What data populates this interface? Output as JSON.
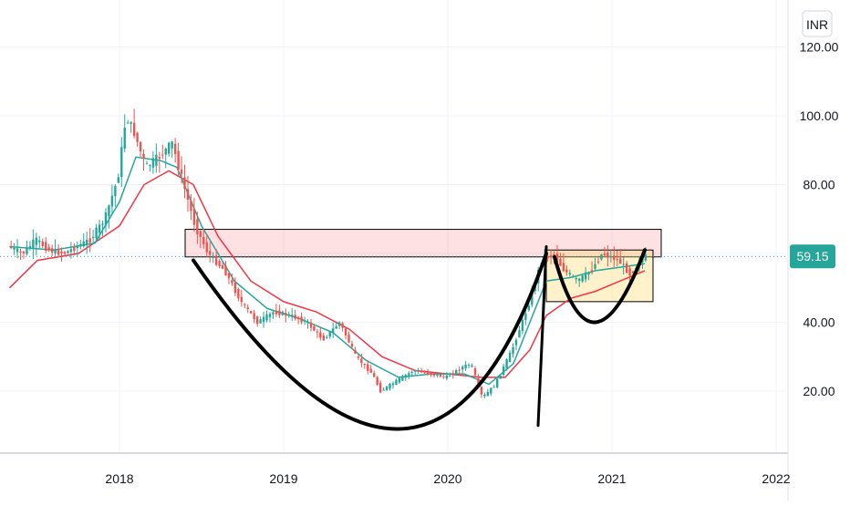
{
  "currency": "INR",
  "chart_data": {
    "type": "line",
    "title": "",
    "xlabel": "",
    "ylabel": "",
    "ylim": [
      0,
      130
    ],
    "y_ticks": [
      "120.00",
      "100.00",
      "80.00",
      "40.00",
      "20.00"
    ],
    "y_tick_values": [
      120,
      100,
      80,
      40,
      20
    ],
    "x_ticks": [
      "2018",
      "2019",
      "2020",
      "2021",
      "2022"
    ],
    "x_tick_values": [
      2018.0,
      2019.0,
      2020.0,
      2021.0,
      2022.0
    ],
    "grid": true,
    "last_price": 59.15,
    "last_price_label": "59.15",
    "colors": {
      "up": "#26a69a",
      "down": "#ef5350",
      "ema_fast": "#26a69a",
      "ema_slow": "#f23645",
      "price_line": "#26a69a"
    },
    "price": [
      [
        2017.33,
        62
      ],
      [
        2017.42,
        60
      ],
      [
        2017.5,
        64
      ],
      [
        2017.58,
        61
      ],
      [
        2017.67,
        60
      ],
      [
        2017.75,
        62
      ],
      [
        2017.83,
        64
      ],
      [
        2017.92,
        70
      ],
      [
        2018.0,
        82
      ],
      [
        2018.05,
        100
      ],
      [
        2018.1,
        95
      ],
      [
        2018.17,
        85
      ],
      [
        2018.25,
        88
      ],
      [
        2018.33,
        92
      ],
      [
        2018.4,
        80
      ],
      [
        2018.47,
        68
      ],
      [
        2018.55,
        60
      ],
      [
        2018.65,
        55
      ],
      [
        2018.75,
        46
      ],
      [
        2018.85,
        40
      ],
      [
        2018.95,
        43
      ],
      [
        2019.05,
        42
      ],
      [
        2019.15,
        40
      ],
      [
        2019.25,
        35
      ],
      [
        2019.35,
        40
      ],
      [
        2019.45,
        30
      ],
      [
        2019.55,
        25
      ],
      [
        2019.6,
        20
      ],
      [
        2019.7,
        23
      ],
      [
        2019.8,
        26
      ],
      [
        2019.9,
        25
      ],
      [
        2020.0,
        24
      ],
      [
        2020.1,
        27
      ],
      [
        2020.15,
        28
      ],
      [
        2020.22,
        18
      ],
      [
        2020.3,
        22
      ],
      [
        2020.4,
        32
      ],
      [
        2020.5,
        45
      ],
      [
        2020.58,
        58
      ],
      [
        2020.65,
        60
      ],
      [
        2020.72,
        55
      ],
      [
        2020.8,
        52
      ],
      [
        2020.88,
        55
      ],
      [
        2020.95,
        60
      ],
      [
        2021.05,
        58
      ],
      [
        2021.12,
        54
      ],
      [
        2021.2,
        59
      ]
    ],
    "ema_fast": [
      [
        2017.33,
        62
      ],
      [
        2017.6,
        61
      ],
      [
        2017.85,
        63
      ],
      [
        2018.0,
        75
      ],
      [
        2018.1,
        88
      ],
      [
        2018.25,
        87
      ],
      [
        2018.35,
        85
      ],
      [
        2018.5,
        68
      ],
      [
        2018.7,
        52
      ],
      [
        2018.9,
        44
      ],
      [
        2019.1,
        41
      ],
      [
        2019.3,
        37
      ],
      [
        2019.5,
        29
      ],
      [
        2019.7,
        24
      ],
      [
        2019.9,
        25
      ],
      [
        2020.1,
        25
      ],
      [
        2020.25,
        22
      ],
      [
        2020.4,
        28
      ],
      [
        2020.5,
        40
      ],
      [
        2020.6,
        52
      ],
      [
        2020.75,
        53
      ],
      [
        2020.9,
        55
      ],
      [
        2021.05,
        56
      ],
      [
        2021.2,
        57
      ]
    ],
    "ema_slow": [
      [
        2017.33,
        50
      ],
      [
        2017.5,
        58
      ],
      [
        2017.75,
        60
      ],
      [
        2018.0,
        68
      ],
      [
        2018.15,
        80
      ],
      [
        2018.3,
        84
      ],
      [
        2018.45,
        80
      ],
      [
        2018.6,
        65
      ],
      [
        2018.8,
        52
      ],
      [
        2019.0,
        46
      ],
      [
        2019.2,
        43
      ],
      [
        2019.4,
        38
      ],
      [
        2019.6,
        30
      ],
      [
        2019.8,
        26
      ],
      [
        2020.0,
        25
      ],
      [
        2020.2,
        24
      ],
      [
        2020.35,
        24
      ],
      [
        2020.5,
        32
      ],
      [
        2020.6,
        42
      ],
      [
        2020.75,
        47
      ],
      [
        2020.9,
        49
      ],
      [
        2021.05,
        52
      ],
      [
        2021.2,
        55
      ]
    ],
    "annotations": {
      "resistance_box": {
        "x": [
          2018.4,
          2021.3
        ],
        "y": [
          59,
          67
        ]
      },
      "handle_box": {
        "x": [
          2020.6,
          2021.25
        ],
        "y": [
          46,
          61
        ]
      },
      "cup_curve": [
        [
          2018.45,
          58
        ],
        [
          2019.7,
          9
        ],
        [
          2020.6,
          60
        ]
      ],
      "handle_curve": [
        [
          2020.65,
          59
        ],
        [
          2020.9,
          40
        ],
        [
          2021.2,
          61
        ]
      ],
      "pole_line": [
        [
          2020.55,
          10
        ],
        [
          2020.6,
          62
        ]
      ]
    }
  }
}
